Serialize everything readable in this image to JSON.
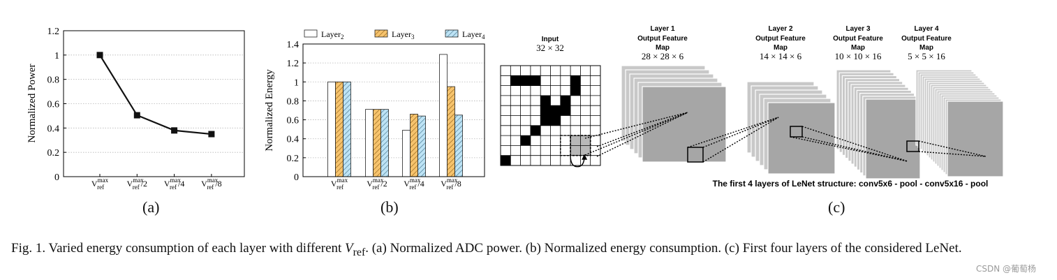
{
  "chart_data": [
    {
      "type": "line",
      "categories": [
        "V_ref^max",
        "V_ref^max/2",
        "V_ref^max/4",
        "V_ref^max/8"
      ],
      "values": [
        1.0,
        0.505,
        0.38,
        0.35
      ],
      "ylabel": "Normalized Power",
      "ylim": [
        0,
        1.2
      ],
      "yticks": [
        "0",
        "0.2",
        "0.4",
        "0.6",
        "0.8",
        "1",
        "1.2"
      ],
      "grid": "horizontal dotted"
    },
    {
      "type": "bar",
      "categories": [
        "V_ref^max",
        "V_ref^max/2",
        "V_ref^max/4",
        "V_ref^max/8"
      ],
      "series": [
        {
          "name": "Layer2",
          "values": [
            1.0,
            0.71,
            0.49,
            1.29
          ]
        },
        {
          "name": "Layer3",
          "values": [
            1.0,
            0.71,
            0.66,
            0.95
          ]
        },
        {
          "name": "Layer4",
          "values": [
            1.0,
            0.71,
            0.64,
            0.65
          ]
        }
      ],
      "ylabel": "Normalized Energy",
      "ylim": [
        0,
        1.4
      ],
      "yticks": [
        "0",
        "0.2",
        "0.4",
        "0.6",
        "0.8",
        "1",
        "1.2",
        "1.4"
      ],
      "legend": "top",
      "grid": "horizontal dotted"
    }
  ],
  "tick_text": {
    "base": "V",
    "sup": "max",
    "sub": "ref",
    "suffixes": [
      "",
      "/2",
      "/4",
      "/8"
    ]
  },
  "legend": {
    "base": "Layer",
    "subs": [
      "2",
      "3",
      "4"
    ]
  },
  "diagram": {
    "input_title": "Input",
    "input_size": "32 × 32",
    "layers": [
      {
        "l1": "Layer 1",
        "l2": "Output Feature",
        "l3": "Map",
        "size": "28 × 28 × 6"
      },
      {
        "l1": "Layer 2",
        "l2": "Output Feature",
        "l3": "Map",
        "size": "14 × 14 × 6"
      },
      {
        "l1": "Layer 3",
        "l2": "Output Feature",
        "l3": "Map",
        "size": "10 × 10 × 16"
      },
      {
        "l1": "Layer 4",
        "l2": "Output Feature",
        "l3": "Map",
        "size": "5 × 5 × 16"
      }
    ],
    "structure_note": "The first 4 layers of LeNet structure: conv5x6 - pool - conv5x16 - pool",
    "black_cells": [
      [
        1,
        1
      ],
      [
        1,
        2
      ],
      [
        1,
        3
      ],
      [
        1,
        7
      ],
      [
        2,
        7
      ],
      [
        3,
        4
      ],
      [
        3,
        6
      ],
      [
        4,
        4
      ],
      [
        4,
        5
      ],
      [
        4,
        6
      ],
      [
        5,
        4
      ],
      [
        5,
        5
      ],
      [
        6,
        3
      ],
      [
        7,
        2
      ],
      [
        9,
        0
      ]
    ]
  },
  "labels": {
    "a": "(a)",
    "b": "(b)",
    "c": "(c)"
  },
  "caption": {
    "prefix": "Fig. 1.   Varied energy consumption of each layer with different ",
    "var": "V",
    "var_sub": "ref",
    "rest": ". (a) Normalized ADC power. (b) Normalized energy consumption. (c) First four layers of the considered LeNet."
  },
  "watermark": "CSDN @葡萄杨",
  "colors": {
    "layer2": "#ffffff",
    "layer3": "#f6c36d",
    "layer4": "#bde3f5",
    "fmap_front": "#a6a6a6",
    "fmap_back": "#cccccc",
    "grid": "#b5b5b5"
  }
}
